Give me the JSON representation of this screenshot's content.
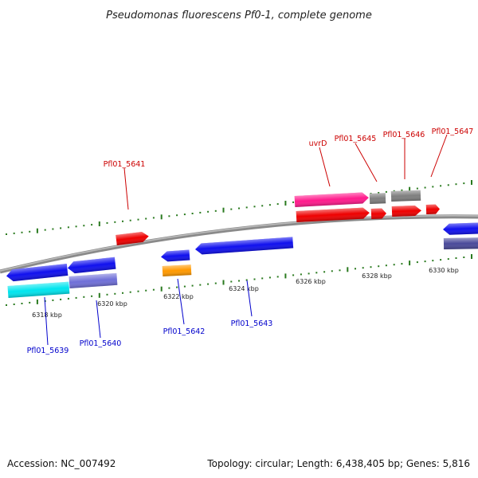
{
  "title": "Pseudomonas fluorescens Pf0-1, complete genome",
  "footer": {
    "accession": "Accession: NC_007492",
    "stats": "Topology: circular; Length: 6,438,405 bp; Genes: 5,816"
  },
  "colors": {
    "backbone": "#8a8a8a",
    "tick": "#2a7a1f",
    "forward_label": "#cc0000",
    "reverse_label": "#0000cc"
  },
  "ticks": [
    {
      "label": "6318 kbp"
    },
    {
      "label": "6320 kbp"
    },
    {
      "label": "6322 kbp"
    },
    {
      "label": "6324 kbp"
    },
    {
      "label": "6326 kbp"
    },
    {
      "label": "6328 kbp"
    },
    {
      "label": "6330 kbp"
    }
  ],
  "labels": {
    "forward": [
      {
        "name": "Pfl01_5641"
      },
      {
        "name": "uvrD"
      },
      {
        "name": "Pfl01_5645"
      },
      {
        "name": "Pfl01_5646"
      },
      {
        "name": "Pfl01_5647"
      }
    ],
    "reverse": [
      {
        "name": "Pfl01_5639"
      },
      {
        "name": "Pfl01_5640"
      },
      {
        "name": "Pfl01_5642"
      },
      {
        "name": "Pfl01_5643"
      }
    ]
  }
}
